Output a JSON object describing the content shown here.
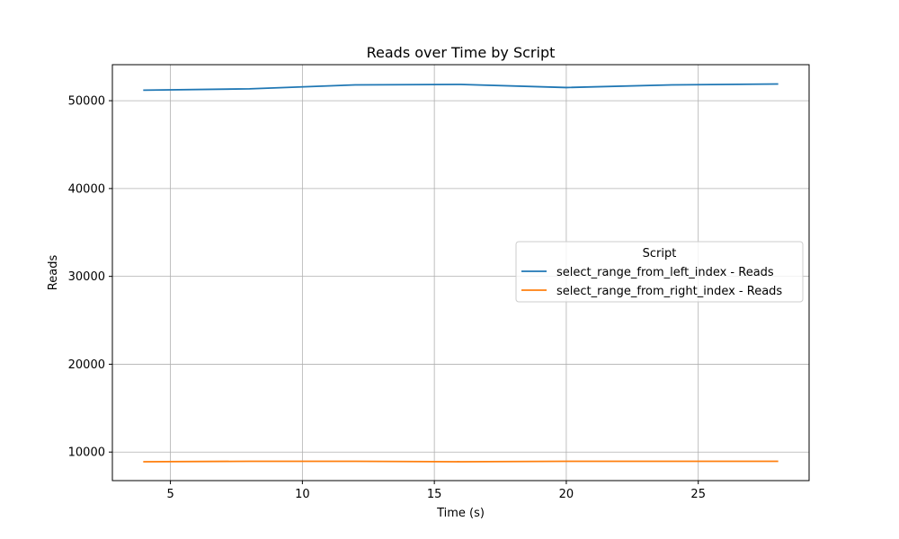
{
  "chart_data": {
    "type": "line",
    "title": "Reads over Time by Script",
    "xlabel": "Time (s)",
    "ylabel": "Reads",
    "xlim": [
      2.8,
      29.2
    ],
    "ylim": [
      6750,
      54100
    ],
    "xticks": [
      5,
      10,
      15,
      20,
      25
    ],
    "yticks": [
      10000,
      20000,
      30000,
      40000,
      50000
    ],
    "grid": true,
    "legend": {
      "title": "Script",
      "position": "center-right"
    },
    "x": [
      4,
      8,
      12,
      16,
      20,
      24,
      28
    ],
    "series": [
      {
        "name": "select_range_from_left_index - Reads",
        "color": "#1f77b4",
        "values": [
          51200,
          51350,
          51800,
          51850,
          51500,
          51800,
          51900
        ]
      },
      {
        "name": "select_range_from_right_index - Reads",
        "color": "#ff7f0e",
        "values": [
          8900,
          8950,
          8950,
          8900,
          8950,
          8950,
          8950
        ]
      }
    ]
  }
}
